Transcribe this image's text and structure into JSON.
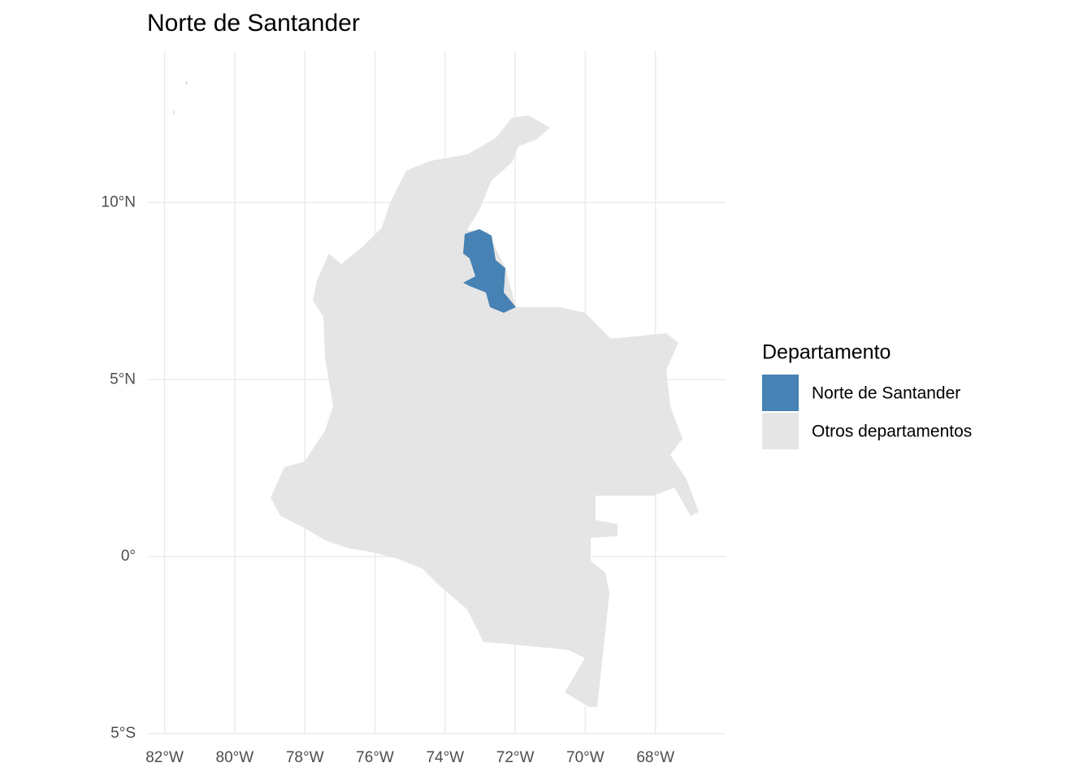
{
  "map": {
    "title": "Norte de Santander",
    "xlim": [
      -82.5,
      -66
    ],
    "ylim": [
      -5,
      14.3
    ],
    "xticks": [
      {
        "value": -82,
        "label": "82°W"
      },
      {
        "value": -80,
        "label": "80°W"
      },
      {
        "value": -78,
        "label": "78°W"
      },
      {
        "value": -76,
        "label": "76°W"
      },
      {
        "value": -74,
        "label": "74°W"
      },
      {
        "value": -72,
        "label": "72°W"
      },
      {
        "value": -70,
        "label": "70°W"
      },
      {
        "value": -68,
        "label": "68°W"
      }
    ],
    "yticks": [
      {
        "value": 10,
        "label": "10°N"
      },
      {
        "value": 5,
        "label": "5°N"
      },
      {
        "value": 0,
        "label": "0°"
      },
      {
        "value": -5,
        "label": "5°S"
      }
    ],
    "grid": true,
    "legend": {
      "title": "Departamento",
      "position": "right",
      "entries": [
        {
          "name": "Norte de Santander",
          "color": "#4682b4"
        },
        {
          "name": "Otros departamentos",
          "color": "#e5e5e5"
        }
      ]
    }
  }
}
